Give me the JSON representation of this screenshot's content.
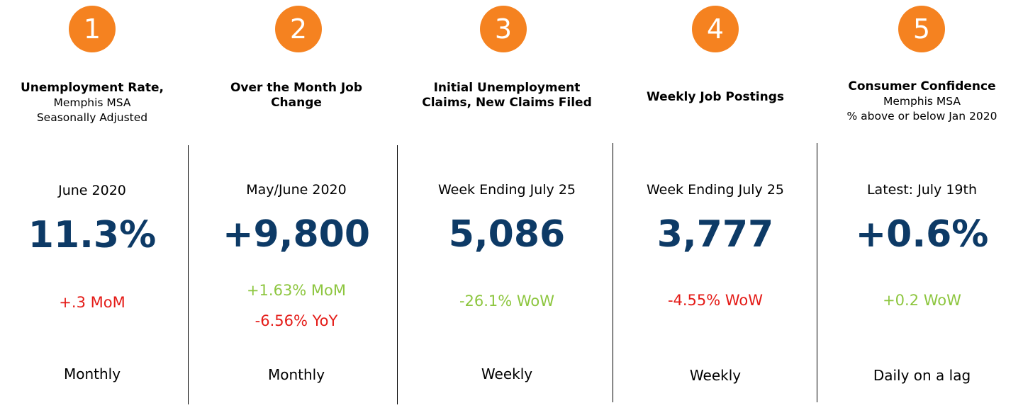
{
  "colors": {
    "badge": "#F58220",
    "value": "#0D3A66",
    "positive": "#8DC63F",
    "negative": "#E41B17"
  },
  "cards": [
    {
      "number": "1",
      "title_lines": [
        "Unemployment Rate,"
      ],
      "subtitle_lines": [
        "Memphis MSA",
        "Seasonally Adjusted"
      ],
      "period": "June 2020",
      "value": "11.3%",
      "changes": [
        {
          "text": "+.3 MoM",
          "tone": "negative"
        }
      ],
      "frequency": "Monthly"
    },
    {
      "number": "2",
      "title_lines": [
        "Over the Month Job",
        "Change"
      ],
      "subtitle_lines": [],
      "period": "May/June 2020",
      "value": "+9,800",
      "changes": [
        {
          "text": "+1.63% MoM",
          "tone": "positive"
        },
        {
          "text": "-6.56% YoY",
          "tone": "negative"
        }
      ],
      "frequency": "Monthly"
    },
    {
      "number": "3",
      "title_lines": [
        "Initial Unemployment",
        "Claims, New Claims Filed"
      ],
      "subtitle_lines": [],
      "period": "Week Ending July 25",
      "value": "5,086",
      "changes": [
        {
          "text": "-26.1% WoW",
          "tone": "positive"
        }
      ],
      "frequency": "Weekly"
    },
    {
      "number": "4",
      "title_lines": [
        "Weekly Job Postings"
      ],
      "subtitle_lines": [],
      "period": "Week Ending July 25",
      "value": "3,777",
      "changes": [
        {
          "text": "-4.55% WoW",
          "tone": "negative"
        }
      ],
      "frequency": "Weekly"
    },
    {
      "number": "5",
      "title_lines": [
        "Consumer Confidence"
      ],
      "subtitle_lines": [
        "Memphis MSA",
        "% above or below Jan 2020"
      ],
      "period": "Latest: July 19th",
      "value": "+0.6%",
      "changes": [
        {
          "text": "+0.2 WoW",
          "tone": "positive"
        }
      ],
      "frequency": "Daily on a lag"
    }
  ]
}
